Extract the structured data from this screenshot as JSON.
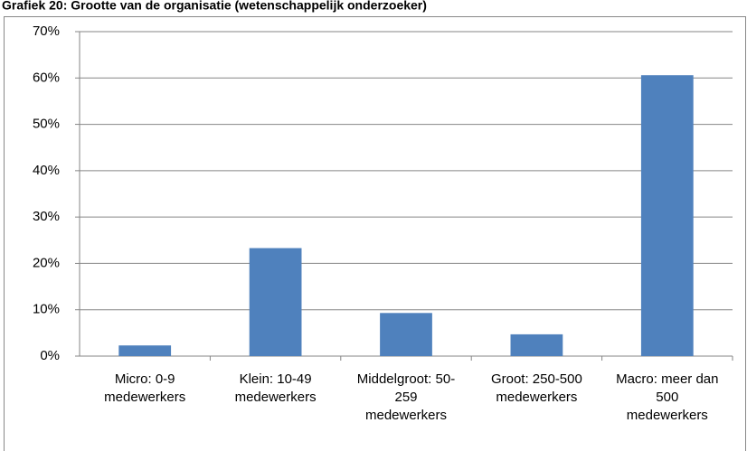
{
  "chart_data": {
    "type": "bar",
    "title": "Grafiek 20: Grootte van de organisatie (wetenschappelijk onderzoeker)",
    "categories": [
      "Micro: 0-9 medewerkers",
      "Klein: 10-49 medewerkers",
      "Middelgroot: 50-259 medewerkers",
      "Groot: 250-500 medewerkers",
      "Macro: meer dan 500 medewerkers"
    ],
    "values": [
      2.3,
      23.3,
      9.3,
      4.7,
      60.6
    ],
    "color": "#4f81bd",
    "ylim": [
      0,
      70
    ],
    "yticks": [
      {
        "value": 0,
        "label": "0%"
      },
      {
        "value": 10,
        "label": "10%"
      },
      {
        "value": 20,
        "label": "20%"
      },
      {
        "value": 30,
        "label": "30%"
      },
      {
        "value": 40,
        "label": "40%"
      },
      {
        "value": 50,
        "label": "50%"
      },
      {
        "value": 60,
        "label": "60%"
      },
      {
        "value": 70,
        "label": "70%"
      }
    ],
    "grid": true
  }
}
